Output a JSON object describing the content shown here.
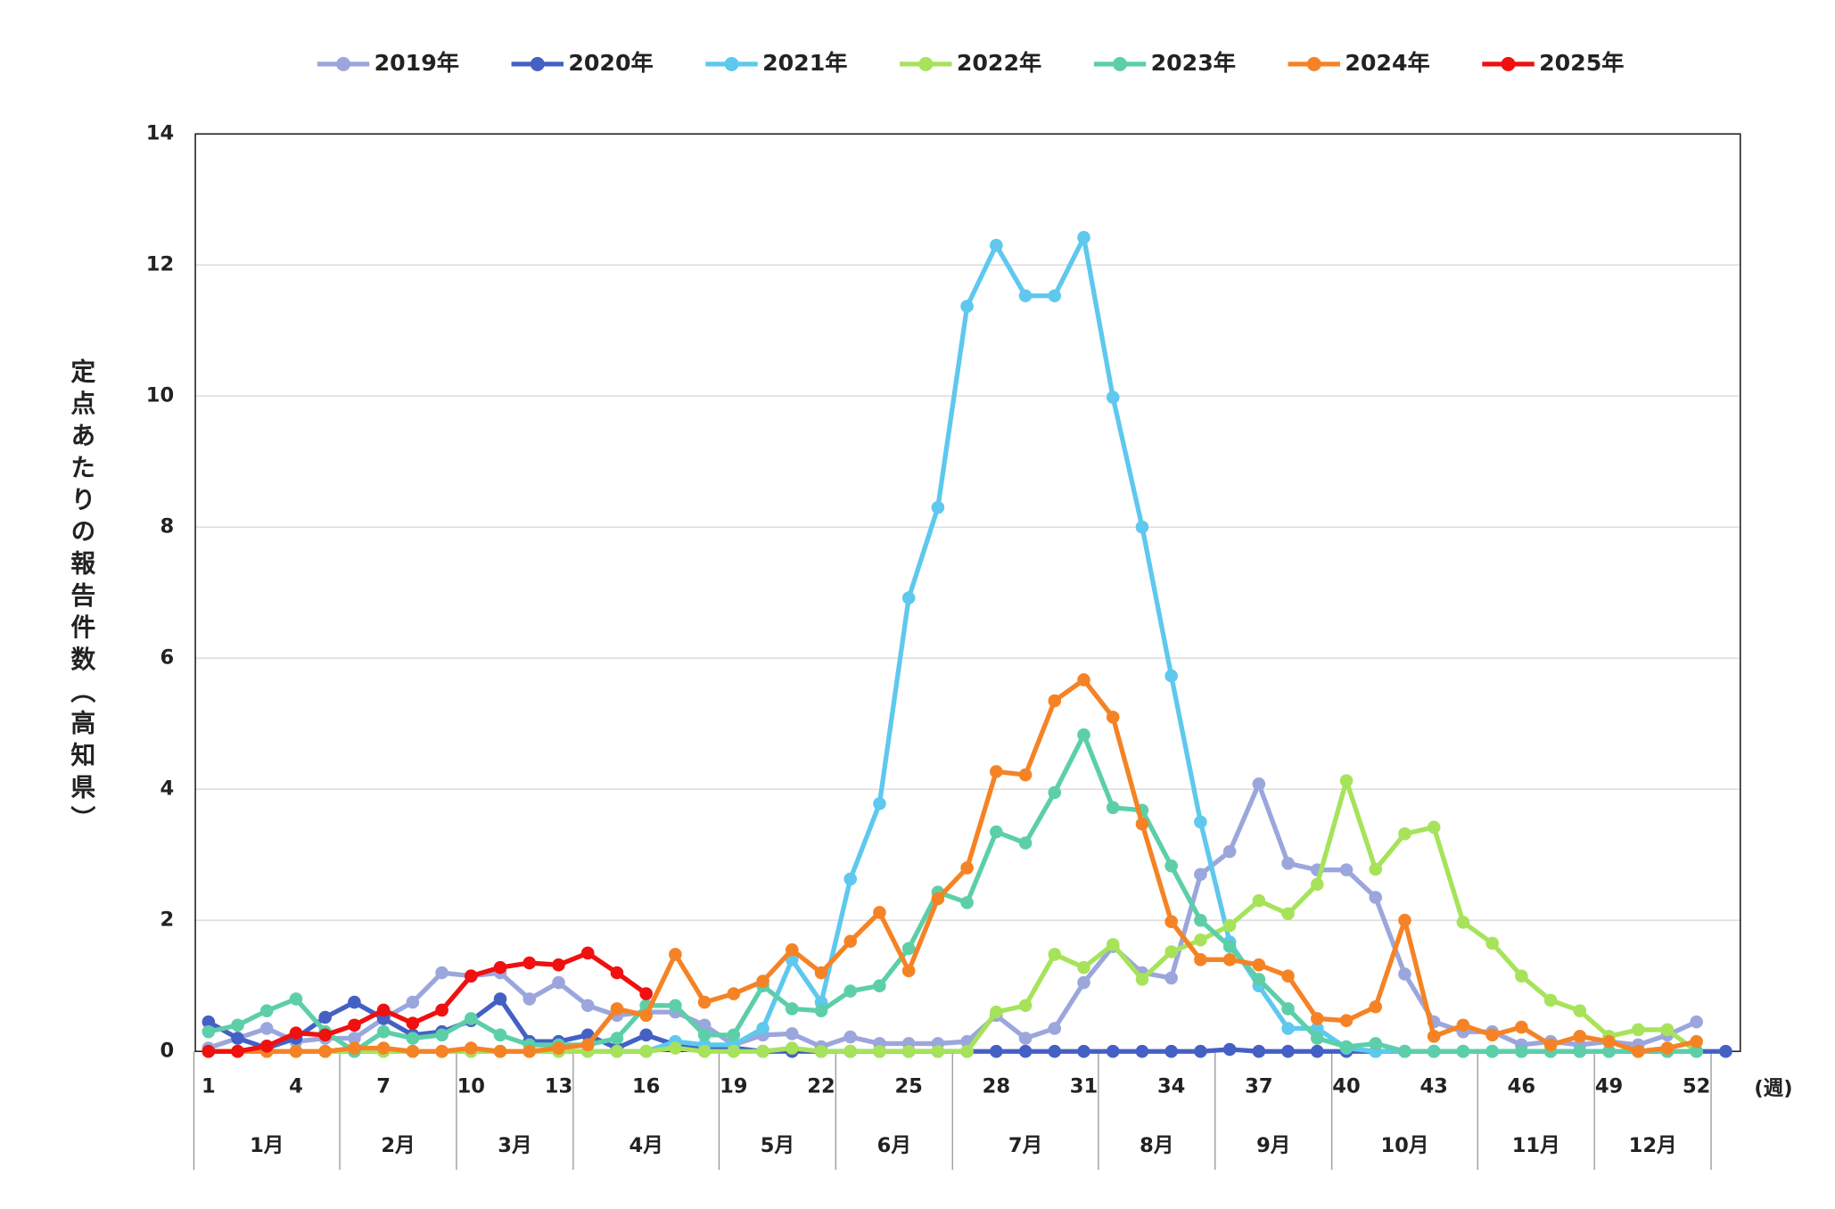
{
  "chart_data": {
    "type": "line",
    "ylabel": "定点あたりの報告件数（高知県）",
    "xlabel": "(週)",
    "months": [
      "1月",
      "2月",
      "3月",
      "4月",
      "5月",
      "6月",
      "7月",
      "8月",
      "9月",
      "10月",
      "11月",
      "12月"
    ],
    "x": [
      1,
      2,
      3,
      4,
      5,
      6,
      7,
      8,
      9,
      10,
      11,
      12,
      13,
      14,
      15,
      16,
      17,
      18,
      19,
      20,
      21,
      22,
      23,
      24,
      25,
      26,
      27,
      28,
      29,
      30,
      31,
      32,
      33,
      34,
      35,
      36,
      37,
      38,
      39,
      40,
      41,
      42,
      43,
      44,
      45,
      46,
      47,
      48,
      49,
      50,
      51,
      52,
      53
    ],
    "xlim": [
      0.55,
      53.5
    ],
    "xticks": [
      1,
      4,
      7,
      10,
      13,
      16,
      19,
      22,
      25,
      28,
      31,
      34,
      37,
      40,
      43,
      46,
      49,
      52
    ],
    "ylim": [
      0,
      14
    ],
    "yticks": [
      0,
      2,
      4,
      6,
      8,
      10,
      12,
      14
    ],
    "grid": true,
    "legend": "top",
    "series": [
      {
        "name": "2019年",
        "color": "#9ba6dc",
        "values": [
          0.05,
          0.2,
          0.35,
          0.15,
          0.2,
          0.2,
          0.5,
          0.75,
          1.2,
          1.15,
          1.2,
          0.8,
          1.05,
          0.7,
          0.55,
          0.6,
          0.6,
          0.4,
          0.1,
          0.25,
          0.27,
          0.07,
          0.22,
          0.12,
          0.12,
          0.12,
          0.15,
          0.55,
          0.2,
          0.35,
          1.05,
          1.6,
          1.2,
          1.12,
          2.7,
          3.05,
          4.08,
          2.87,
          2.77,
          2.77,
          2.35,
          1.18,
          0.45,
          0.3,
          0.3,
          0.1,
          0.15,
          0.1,
          0.15,
          0.1,
          0.25,
          0.45,
          null
        ]
      },
      {
        "name": "2020年",
        "color": "#4560c4",
        "values": [
          0.45,
          0.2,
          0.05,
          0.2,
          0.52,
          0.75,
          0.5,
          0.25,
          0.3,
          0.47,
          0.8,
          0.15,
          0.15,
          0.25,
          0.05,
          0.25,
          0.1,
          0.05,
          0.05,
          0,
          0,
          0,
          0,
          0,
          0,
          0,
          0,
          0,
          0,
          0,
          0,
          0,
          0,
          0,
          0,
          0.03,
          0,
          0,
          0,
          0,
          0,
          0,
          0,
          0,
          0,
          0,
          0,
          0,
          0,
          0,
          0,
          0,
          0
        ]
      },
      {
        "name": "2021年",
        "color": "#5ec8ee",
        "values": [
          0,
          0,
          0,
          0,
          0,
          0,
          0,
          0,
          0,
          0,
          0,
          0,
          0,
          0,
          0,
          0,
          0.15,
          0.1,
          0.1,
          0.35,
          1.4,
          0.75,
          2.63,
          3.78,
          6.92,
          8.3,
          11.37,
          12.3,
          11.53,
          11.53,
          12.42,
          9.98,
          8.0,
          5.73,
          3.5,
          1.67,
          1.0,
          0.35,
          0.35,
          0.05,
          0,
          0,
          0,
          0,
          0,
          0,
          0,
          0,
          0,
          0,
          0,
          0,
          null
        ]
      },
      {
        "name": "2022年",
        "color": "#a6e35a",
        "values": [
          0,
          0,
          0,
          0,
          0,
          0,
          0,
          0,
          0,
          0,
          0,
          0,
          0,
          0,
          0,
          0,
          0.05,
          0,
          0,
          0,
          0.05,
          0,
          0,
          0,
          0,
          0,
          0,
          0.6,
          0.7,
          1.48,
          1.28,
          1.63,
          1.1,
          1.52,
          1.7,
          1.92,
          2.3,
          2.1,
          2.55,
          4.13,
          2.78,
          3.32,
          3.42,
          1.97,
          1.65,
          1.15,
          0.78,
          0.62,
          0.23,
          0.33,
          0.33,
          0,
          null
        ]
      },
      {
        "name": "2023年",
        "color": "#5ccfa8",
        "values": [
          0.3,
          0.4,
          0.62,
          0.8,
          0.3,
          0,
          0.3,
          0.2,
          0.25,
          0.5,
          0.25,
          0.1,
          0.1,
          0.1,
          0.2,
          0.7,
          0.7,
          0.25,
          0.25,
          1.0,
          0.65,
          0.62,
          0.92,
          1.0,
          1.57,
          2.43,
          2.27,
          3.35,
          3.18,
          3.95,
          4.83,
          3.72,
          3.68,
          2.83,
          2.0,
          1.6,
          1.1,
          0.65,
          0.2,
          0.07,
          0.12,
          0,
          0,
          0,
          0,
          0,
          0,
          0,
          0,
          0,
          0,
          0,
          null
        ]
      },
      {
        "name": "2024年",
        "color": "#f58326",
        "values": [
          0,
          0,
          0,
          0,
          0,
          0.05,
          0.05,
          0,
          0,
          0.05,
          0,
          0,
          0.05,
          0.1,
          0.65,
          0.55,
          1.48,
          0.75,
          0.88,
          1.07,
          1.55,
          1.2,
          1.68,
          2.12,
          1.23,
          2.33,
          2.8,
          4.27,
          4.22,
          5.35,
          5.67,
          5.1,
          3.47,
          1.98,
          1.4,
          1.4,
          1.32,
          1.15,
          0.5,
          0.47,
          0.68,
          2.0,
          0.23,
          0.4,
          0.25,
          0.37,
          0.1,
          0.23,
          0.15,
          0,
          0.05,
          0.15,
          null
        ]
      },
      {
        "name": "2025年",
        "color": "#f01010",
        "values": [
          0,
          0,
          0.08,
          0.28,
          0.25,
          0.4,
          0.63,
          0.43,
          0.63,
          1.15,
          1.28,
          1.35,
          1.32,
          1.5,
          1.2,
          0.88,
          null,
          null,
          null,
          null,
          null,
          null,
          null,
          null,
          null,
          null,
          null,
          null,
          null,
          null,
          null,
          null,
          null,
          null,
          null,
          null,
          null,
          null,
          null,
          null,
          null,
          null,
          null,
          null,
          null,
          null,
          null,
          null,
          null,
          null,
          null,
          null,
          null
        ]
      }
    ]
  }
}
